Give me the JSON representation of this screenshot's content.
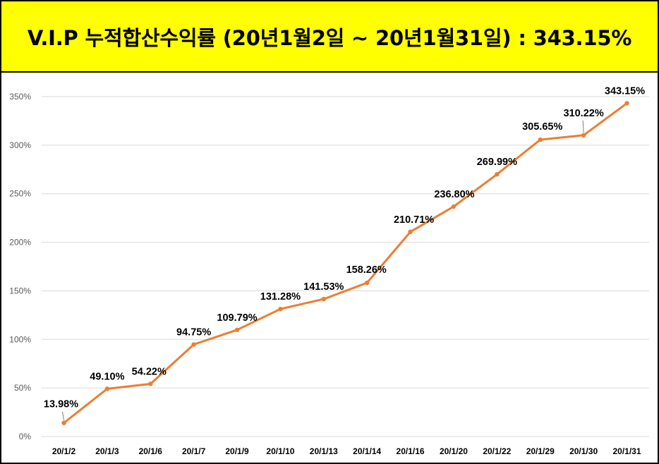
{
  "chart_data": {
    "type": "line",
    "title": "V.I.P 누적합산수익률 (20년1월2일 ~ 20년1월31일) : 343.15%",
    "xlabel": "",
    "ylabel": "",
    "categories": [
      "20/1/2",
      "20/1/3",
      "20/1/6",
      "20/1/7",
      "20/1/9",
      "20/1/10",
      "20/1/13",
      "20/1/14",
      "20/1/16",
      "20/1/20",
      "20/1/22",
      "20/1/29",
      "20/1/30",
      "20/1/31"
    ],
    "series": [
      {
        "name": "누적합산수익률",
        "values": [
          13.98,
          49.1,
          54.22,
          94.75,
          109.79,
          131.28,
          141.53,
          158.26,
          210.71,
          236.8,
          269.99,
          305.65,
          310.22,
          343.15
        ],
        "labels": [
          "13.98%",
          "49.10%",
          "54.22%",
          "94.75%",
          "109.79%",
          "131.28%",
          "141.53%",
          "158.26%",
          "210.71%",
          "236.80%",
          "269.99%",
          "305.65%",
          "310.22%",
          "343.15%"
        ],
        "color": "#ed7d31"
      }
    ],
    "ylim": [
      0,
      350
    ],
    "yticks": [
      0,
      50,
      100,
      150,
      200,
      250,
      300,
      350
    ],
    "ytick_labels": [
      "0%",
      "50%",
      "100%",
      "150%",
      "200%",
      "250%",
      "300%",
      "350%"
    ],
    "grid": true,
    "colors": {
      "title_bg": "#ffff00",
      "line": "#ed7d31",
      "grid": "#d9d9d9"
    }
  }
}
